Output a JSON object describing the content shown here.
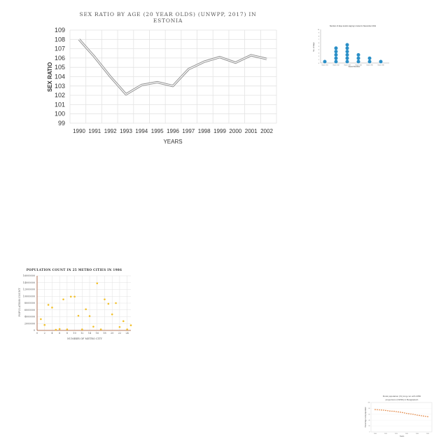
{
  "chart_data": [
    {
      "type": "line",
      "title": "SEX RATIO BY AGE (20 YEAR OLDS) (UNWPP, 2017) IN ESTONIA",
      "title_lines": [
        "SEX RATIO BY AGE (20 YEAR OLDS) (UNWPP, 2017) IN",
        "ESTONIA"
      ],
      "xlabel": "YEARS",
      "ylabel": "SEX RATIO",
      "x": [
        "1990",
        "1991",
        "1992",
        "1993",
        "1994",
        "1995",
        "1996",
        "1997",
        "1998",
        "1999",
        "2000",
        "2001",
        "2002"
      ],
      "values": [
        108,
        106.1,
        104,
        102.1,
        103.1,
        103.4,
        103,
        104.8,
        105.6,
        106.1,
        105.5,
        106.3,
        105.9
      ],
      "ylim": [
        99,
        109
      ],
      "yticks": [
        99,
        100,
        101,
        102,
        103,
        104,
        105,
        106,
        107,
        108,
        109
      ],
      "grid": true,
      "colors": {
        "line": "#b0b0b0",
        "grid": "#e3e3e3"
      }
    },
    {
      "type": "scatter",
      "title": "Number of days tourist staying in Hotel in November 2011",
      "xlabel": "Guest Number",
      "ylabel": "No. of days",
      "categories": [
        "Guest #01",
        "Guest #02",
        "Guest #03",
        "Guest #04",
        "Guest #05",
        "Guest #06"
      ],
      "values": [
        1,
        5,
        6,
        3,
        2,
        1
      ],
      "ylim": [
        0,
        10
      ],
      "colors": {
        "dots": "#2a8fc7"
      }
    },
    {
      "type": "scatter",
      "title": "POPULATION COUNT IN 25 METRO CITIES IN 1986",
      "xlabel": "NUMBER OF METRO CITY",
      "ylabel": "POPULATION COUNT",
      "x": [
        1,
        2,
        3,
        4,
        5,
        6,
        7,
        8,
        9,
        10,
        11,
        12,
        13,
        14,
        15,
        16,
        17,
        18,
        19,
        20,
        21,
        22,
        23,
        24,
        25
      ],
      "values": [
        3300000,
        1600000,
        7500000,
        6700000,
        200000,
        400000,
        9100000,
        300000,
        9900000,
        9900000,
        4300000,
        300000,
        6200000,
        4200000,
        1100000,
        13800000,
        300000,
        9100000,
        7800000,
        4700000,
        8000000,
        1000000,
        2700000,
        300000,
        1500000
      ],
      "ylim": [
        0,
        16000000
      ],
      "yticks": [
        0,
        2000000,
        4000000,
        6000000,
        8000000,
        10000000,
        12000000,
        14000000,
        16000000
      ],
      "xticks": [
        0,
        2,
        4,
        6,
        8,
        10,
        12,
        14,
        16,
        18,
        20,
        22,
        24
      ],
      "grid": true,
      "colors": {
        "markers": "#f2c12e",
        "axis": "#a0522d"
      }
    },
    {
      "type": "scatter",
      "title": "Rural population (%) long-run with 2050 projections (OWID) in Bangladesh",
      "title_lines": [
        "Rural population (%) long-run with 2050",
        "projections (OWID) in Bangladesh"
      ],
      "xlabel": "Years",
      "ylabel": "Percentage rural population",
      "x": [
        2000,
        2002,
        2004,
        2006,
        2008,
        2010,
        2012,
        2014,
        2016,
        2018,
        2020,
        2022,
        2024,
        2026,
        2028,
        2030,
        2032,
        2034,
        2036,
        2038,
        2040,
        2042,
        2044,
        2046,
        2048,
        2050
      ],
      "values": [
        76,
        75.5,
        75,
        74.5,
        74,
        73,
        72,
        71,
        70.5,
        70,
        69,
        68,
        67,
        66,
        64.5,
        63,
        62,
        61,
        60,
        58.5,
        57,
        56,
        55,
        54,
        53,
        52
      ],
      "ylim": [
        0,
        100
      ],
      "colors": {
        "markers": "#e0782d"
      }
    }
  ]
}
